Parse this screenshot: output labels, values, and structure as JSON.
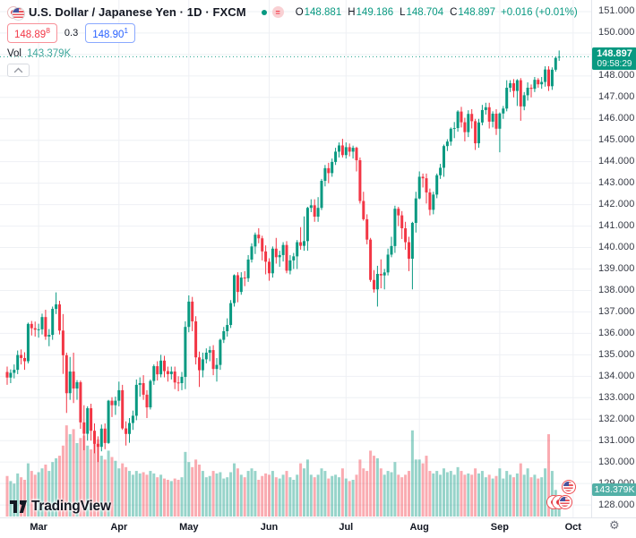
{
  "header": {
    "symbol_title": "U.S. Dollar / Japanese Yen · 1D · FXCM",
    "delayed_badge": "=",
    "ohlc": {
      "o_label": "O",
      "o": "148.881",
      "h_label": "H",
      "h": "149.186",
      "l_label": "L",
      "l": "148.704",
      "c_label": "C",
      "c": "148.897",
      "change": "+0.016 (+0.01%)"
    },
    "bid": {
      "main": "148.89",
      "sup": "8"
    },
    "spread": "0.3",
    "ask": {
      "main": "148.90",
      "sup": "1"
    },
    "vol_label": "Vol",
    "vol_value": "143.379K"
  },
  "colors": {
    "up": "#089981",
    "down": "#f23645",
    "vol_up": "rgba(8,153,129,0.42)",
    "vol_down": "rgba(242,54,69,0.42)",
    "grid": "#eef0f4"
  },
  "price_axis": {
    "ticks": [
      "151.000",
      "150.000",
      "149.000",
      "148.000",
      "147.000",
      "146.000",
      "145.000",
      "144.000",
      "143.000",
      "142.000",
      "141.000",
      "140.000",
      "139.000",
      "138.000",
      "137.000",
      "136.000",
      "135.000",
      "134.000",
      "133.000",
      "132.000",
      "131.000",
      "130.000",
      "129.000",
      "128.000"
    ],
    "price_label": {
      "price": "148.897",
      "countdown": "09:58:29"
    },
    "vol_label": "143.379K"
  },
  "time_axis": {
    "months": [
      {
        "label": "Mar",
        "index": 9
      },
      {
        "label": "Apr",
        "index": 32
      },
      {
        "label": "May",
        "index": 52
      },
      {
        "label": "Jun",
        "index": 75
      },
      {
        "label": "Jul",
        "index": 97
      },
      {
        "label": "Aug",
        "index": 118
      },
      {
        "label": "Sep",
        "index": 141
      },
      {
        "label": "Oct",
        "index": 162
      }
    ]
  },
  "logo_text": "TradingView",
  "chart_data": {
    "type": "candlestick",
    "title": "U.S. Dollar / Japanese Yen",
    "interval": "1D",
    "exchange": "FXCM",
    "ylim": [
      127.42,
      151.54
    ],
    "last_price": 148.897,
    "volume_axis_max": 820,
    "candles": [
      [
        134.2,
        134.45,
        133.6,
        133.94
      ],
      [
        133.94,
        134.32,
        133.68,
        134.16
      ],
      [
        134.16,
        134.55,
        133.9,
        134.3
      ],
      [
        134.3,
        135.2,
        134.1,
        134.99
      ],
      [
        134.99,
        135.25,
        134.55,
        134.85
      ],
      [
        134.85,
        135.12,
        134.3,
        134.7
      ],
      [
        134.7,
        136.5,
        134.6,
        136.44
      ],
      [
        136.44,
        136.58,
        135.9,
        136.24
      ],
      [
        136.24,
        136.55,
        135.85,
        136.17
      ],
      [
        136.17,
        136.45,
        135.8,
        136.19
      ],
      [
        136.19,
        136.92,
        135.95,
        136.76
      ],
      [
        136.76,
        137.1,
        135.7,
        135.85
      ],
      [
        135.85,
        136.2,
        135.4,
        135.93
      ],
      [
        135.93,
        137.25,
        135.7,
        137.14
      ],
      [
        137.14,
        137.91,
        136.9,
        137.35
      ],
      [
        137.35,
        137.52,
        135.95,
        136.13
      ],
      [
        136.13,
        136.9,
        134.11,
        134.98
      ],
      [
        134.98,
        135.1,
        132.29,
        133.21
      ],
      [
        133.21,
        134.9,
        132.9,
        134.22
      ],
      [
        134.22,
        135.1,
        132.75,
        133.43
      ],
      [
        133.43,
        133.82,
        132.9,
        133.72
      ],
      [
        133.72,
        133.8,
        131.55,
        131.85
      ],
      [
        131.85,
        132.65,
        130.55,
        131.32
      ],
      [
        131.32,
        132.6,
        131.0,
        132.51
      ],
      [
        132.51,
        132.72,
        131.0,
        131.46
      ],
      [
        131.46,
        131.8,
        130.41,
        130.85
      ],
      [
        130.85,
        131.2,
        130.0,
        130.71
      ],
      [
        130.71,
        131.75,
        130.5,
        131.56
      ],
      [
        131.56,
        131.8,
        130.6,
        130.89
      ],
      [
        130.89,
        132.9,
        130.85,
        132.86
      ],
      [
        132.86,
        133.02,
        132.1,
        132.65
      ],
      [
        132.65,
        133.05,
        132.2,
        132.86
      ],
      [
        132.86,
        133.75,
        132.6,
        133.35
      ],
      [
        133.35,
        133.6,
        131.5,
        131.57
      ],
      [
        131.57,
        131.9,
        130.77,
        131.31
      ],
      [
        131.31,
        132.05,
        130.9,
        131.82
      ],
      [
        131.82,
        132.4,
        131.5,
        132.16
      ],
      [
        132.16,
        133.85,
        131.95,
        133.6
      ],
      [
        133.6,
        133.95,
        133.05,
        133.68
      ],
      [
        133.68,
        134.05,
        132.9,
        133.14
      ],
      [
        133.14,
        133.35,
        132.05,
        132.55
      ],
      [
        132.55,
        133.85,
        132.45,
        133.78
      ],
      [
        133.78,
        134.55,
        133.6,
        134.47
      ],
      [
        134.47,
        134.7,
        133.8,
        134.09
      ],
      [
        134.09,
        135.0,
        133.95,
        134.73
      ],
      [
        134.73,
        134.95,
        133.95,
        134.24
      ],
      [
        134.24,
        134.45,
        133.75,
        134.1
      ],
      [
        134.1,
        134.45,
        133.85,
        134.22
      ],
      [
        134.22,
        134.45,
        133.4,
        133.71
      ],
      [
        133.71,
        134.0,
        133.3,
        133.68
      ],
      [
        133.68,
        134.2,
        133.35,
        133.97
      ],
      [
        133.97,
        136.56,
        133.4,
        136.3
      ],
      [
        136.3,
        137.77,
        136.05,
        137.48
      ],
      [
        137.48,
        137.7,
        136.1,
        136.56
      ],
      [
        136.56,
        136.8,
        134.55,
        134.88
      ],
      [
        134.88,
        135.15,
        133.5,
        134.28
      ],
      [
        134.28,
        135.1,
        133.95,
        134.79
      ],
      [
        134.79,
        135.3,
        134.6,
        135.1
      ],
      [
        135.1,
        135.4,
        134.7,
        135.22
      ],
      [
        135.22,
        135.45,
        134.05,
        134.34
      ],
      [
        134.34,
        134.85,
        133.75,
        134.53
      ],
      [
        134.53,
        135.75,
        134.3,
        135.7
      ],
      [
        135.7,
        136.3,
        135.55,
        136.1
      ],
      [
        136.1,
        136.7,
        135.85,
        136.39
      ],
      [
        136.39,
        137.55,
        136.25,
        137.41
      ],
      [
        137.41,
        138.75,
        137.25,
        138.71
      ],
      [
        138.71,
        138.85,
        137.45,
        137.93
      ],
      [
        137.93,
        138.85,
        137.8,
        138.6
      ],
      [
        138.6,
        138.9,
        138.2,
        138.57
      ],
      [
        138.57,
        139.65,
        138.4,
        139.44
      ],
      [
        139.44,
        140.2,
        139.3,
        140.05
      ],
      [
        140.05,
        140.7,
        139.7,
        140.6
      ],
      [
        140.6,
        140.9,
        140.2,
        140.43
      ],
      [
        140.43,
        140.55,
        139.4,
        139.82
      ],
      [
        139.82,
        140.1,
        138.75,
        139.34
      ],
      [
        139.34,
        139.5,
        138.45,
        138.8
      ],
      [
        138.8,
        140.05,
        138.6,
        139.95
      ],
      [
        139.95,
        140.45,
        139.25,
        139.55
      ],
      [
        139.55,
        139.85,
        139.1,
        139.65
      ],
      [
        139.65,
        140.25,
        139.35,
        140.12
      ],
      [
        140.12,
        140.3,
        138.8,
        138.92
      ],
      [
        138.92,
        139.65,
        138.75,
        139.4
      ],
      [
        139.4,
        139.75,
        139.0,
        139.59
      ],
      [
        139.59,
        140.35,
        139.0,
        140.25
      ],
      [
        140.25,
        140.95,
        139.9,
        140.08
      ],
      [
        140.08,
        141.45,
        139.85,
        140.3
      ],
      [
        140.3,
        141.9,
        139.85,
        141.85
      ],
      [
        141.85,
        142.25,
        141.65,
        141.97
      ],
      [
        141.97,
        142.25,
        141.2,
        141.44
      ],
      [
        141.44,
        142.35,
        141.2,
        141.85
      ],
      [
        141.85,
        143.2,
        141.75,
        143.11
      ],
      [
        143.11,
        143.85,
        142.85,
        143.7
      ],
      [
        143.7,
        143.95,
        143.0,
        143.47
      ],
      [
        143.47,
        144.15,
        143.3,
        143.99
      ],
      [
        143.99,
        144.65,
        143.85,
        144.47
      ],
      [
        144.47,
        144.9,
        144.2,
        144.76
      ],
      [
        144.76,
        145.07,
        144.2,
        144.31
      ],
      [
        144.31,
        144.9,
        144.15,
        144.68
      ],
      [
        144.68,
        144.85,
        144.25,
        144.47
      ],
      [
        144.47,
        144.75,
        144.15,
        144.65
      ],
      [
        144.65,
        144.7,
        143.55,
        144.07
      ],
      [
        144.07,
        144.2,
        142.05,
        142.17
      ],
      [
        142.17,
        142.6,
        141.25,
        141.32
      ],
      [
        141.32,
        141.55,
        140.15,
        140.37
      ],
      [
        140.37,
        140.45,
        138.4,
        138.49
      ],
      [
        138.49,
        138.95,
        137.9,
        138.05
      ],
      [
        138.05,
        139.15,
        137.25,
        138.77
      ],
      [
        138.77,
        139.45,
        138.1,
        138.7
      ],
      [
        138.7,
        139.0,
        138.05,
        138.84
      ],
      [
        138.84,
        139.95,
        138.7,
        139.67
      ],
      [
        139.67,
        140.5,
        139.55,
        140.07
      ],
      [
        140.07,
        141.95,
        139.75,
        141.81
      ],
      [
        141.81,
        141.9,
        141.0,
        141.5
      ],
      [
        141.5,
        141.7,
        140.4,
        140.9
      ],
      [
        140.9,
        141.2,
        139.9,
        140.25
      ],
      [
        140.25,
        140.5,
        138.9,
        139.48
      ],
      [
        139.48,
        141.2,
        138.05,
        141.15
      ],
      [
        141.15,
        142.6,
        140.7,
        142.29
      ],
      [
        142.29,
        143.55,
        142.25,
        143.3
      ],
      [
        143.3,
        143.45,
        142.8,
        143.23
      ],
      [
        143.23,
        143.45,
        142.05,
        142.57
      ],
      [
        142.57,
        142.75,
        141.5,
        141.76
      ],
      [
        141.76,
        142.6,
        141.55,
        142.47
      ],
      [
        142.47,
        143.45,
        142.3,
        143.37
      ],
      [
        143.37,
        143.9,
        143.2,
        143.72
      ],
      [
        143.72,
        144.8,
        143.3,
        144.73
      ],
      [
        144.73,
        145.05,
        144.5,
        144.94
      ],
      [
        144.94,
        145.6,
        144.75,
        145.54
      ],
      [
        145.54,
        145.85,
        145.1,
        145.57
      ],
      [
        145.57,
        146.4,
        145.4,
        146.34
      ],
      [
        146.34,
        146.56,
        145.6,
        145.84
      ],
      [
        145.84,
        146.05,
        144.95,
        145.38
      ],
      [
        145.38,
        146.4,
        145.15,
        146.23
      ],
      [
        146.23,
        146.45,
        145.55,
        145.89
      ],
      [
        145.89,
        146.0,
        144.55,
        144.86
      ],
      [
        144.86,
        146.0,
        144.65,
        145.83
      ],
      [
        145.83,
        146.65,
        145.7,
        146.41
      ],
      [
        146.41,
        146.75,
        146.2,
        146.54
      ],
      [
        146.54,
        146.75,
        145.55,
        145.87
      ],
      [
        145.87,
        146.35,
        145.6,
        146.24
      ],
      [
        146.24,
        146.45,
        145.25,
        145.54
      ],
      [
        145.54,
        146.3,
        144.44,
        146.25
      ],
      [
        146.25,
        146.6,
        146.0,
        146.48
      ],
      [
        146.48,
        147.8,
        146.35,
        147.45
      ],
      [
        147.45,
        147.8,
        147.25,
        147.66
      ],
      [
        147.66,
        147.85,
        147.0,
        147.3
      ],
      [
        147.3,
        147.85,
        146.6,
        147.8
      ],
      [
        147.8,
        147.9,
        145.91,
        146.58
      ],
      [
        146.58,
        147.25,
        146.4,
        147.1
      ],
      [
        147.1,
        147.7,
        146.85,
        147.45
      ],
      [
        147.45,
        147.6,
        147.0,
        147.4
      ],
      [
        147.4,
        147.95,
        147.25,
        147.82
      ],
      [
        147.82,
        147.9,
        147.45,
        147.61
      ],
      [
        147.61,
        147.95,
        147.4,
        147.72
      ],
      [
        147.72,
        148.45,
        147.5,
        148.3
      ],
      [
        148.3,
        148.45,
        147.3,
        147.52
      ],
      [
        147.52,
        148.4,
        147.35,
        148.29
      ],
      [
        148.29,
        148.9,
        148.2,
        148.84
      ],
      [
        148.881,
        149.186,
        148.704,
        148.897
      ]
    ],
    "volumes": [
      320,
      280,
      260,
      340,
      310,
      290,
      420,
      360,
      330,
      350,
      380,
      410,
      360,
      430,
      460,
      480,
      560,
      720,
      650,
      690,
      580,
      620,
      640,
      560,
      530,
      590,
      610,
      480,
      450,
      520,
      470,
      440,
      380,
      420,
      390,
      360,
      330,
      360,
      340,
      350,
      330,
      360,
      340,
      310,
      330,
      300,
      290,
      280,
      300,
      290,
      310,
      510,
      430,
      390,
      450,
      410,
      360,
      310,
      320,
      360,
      340,
      350,
      300,
      310,
      350,
      420,
      380,
      330,
      310,
      360,
      380,
      360,
      290,
      320,
      340,
      330,
      360,
      310,
      300,
      330,
      360,
      310,
      290,
      330,
      420,
      380,
      450,
      330,
      310,
      330,
      380,
      360,
      300,
      320,
      330,
      310,
      380,
      300,
      280,
      290,
      330,
      450,
      380,
      360,
      520,
      480,
      460,
      380,
      330,
      360,
      350,
      430,
      330,
      310,
      330,
      360,
      680,
      450,
      450,
      420,
      480,
      360,
      340,
      360,
      330,
      380,
      350,
      360,
      330,
      390,
      360,
      330,
      340,
      330,
      380,
      340,
      360,
      310,
      330,
      300,
      320,
      380,
      300,
      360,
      330,
      310,
      340,
      420,
      330,
      380,
      310,
      330,
      300,
      310,
      380,
      650,
      360,
      210,
      143.379
    ]
  }
}
